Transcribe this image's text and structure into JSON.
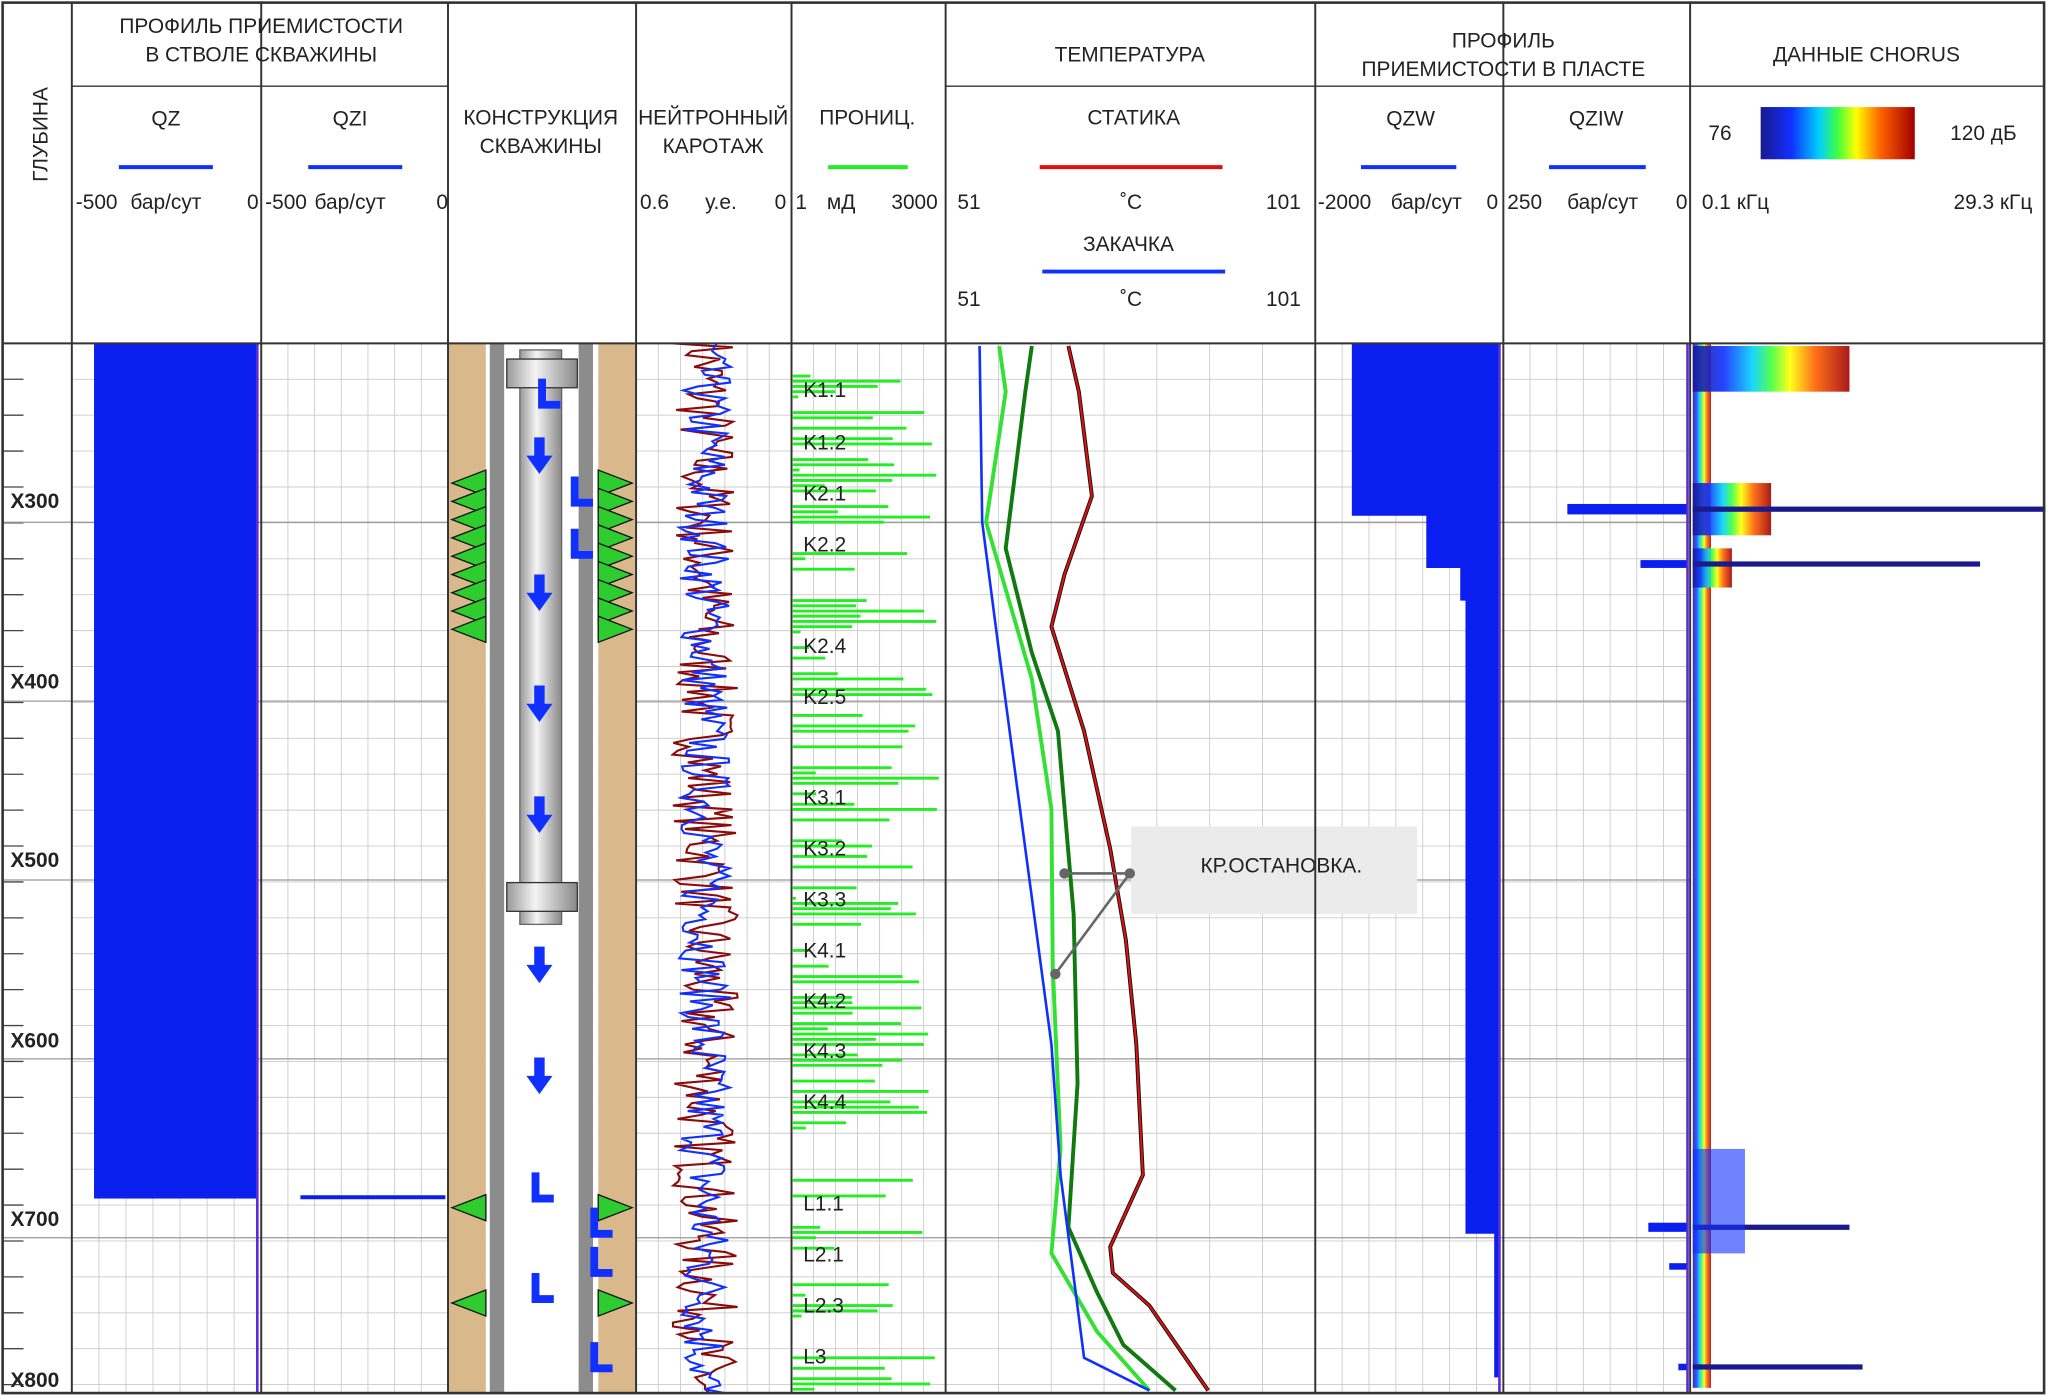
{
  "header": {
    "depth": "ГЛУБИНА",
    "wellbore_profile": [
      "ПРОФИЛЬ ПРИЕМИСТОСТИ",
      "В СТВОЛЕ СКВАЖИНЫ"
    ],
    "qz": {
      "name": "QZ",
      "min": "-500",
      "unit": "бар/сут",
      "max": "0"
    },
    "qzi": {
      "name": "QZI",
      "min": "-500",
      "unit": "бар/сут",
      "max": "0"
    },
    "construction": [
      "КОНСТРУКЦИЯ",
      "СКВАЖИНЫ"
    ],
    "neutron": {
      "name": [
        "НЕЙТРОННЫЙ",
        "КАРОТАЖ"
      ],
      "min": "0.6",
      "unit": "у.е.",
      "max": "0"
    },
    "perm": {
      "name": "ПРОНИЦ.",
      "min": "1",
      "unit": "мД",
      "max": "3000"
    },
    "temperature": {
      "title": "ТЕМПЕРАТУРА",
      "static": {
        "name": "СТАТИКА",
        "min": "51",
        "unit": "˚C",
        "max": "101"
      },
      "injection": {
        "name": "ЗАКАЧКА",
        "min": "51",
        "unit": "˚C",
        "max": "101"
      }
    },
    "reservoir_profile": [
      "ПРОФИЛЬ",
      "ПРИЕМИСТОСТИ В ПЛАСТЕ"
    ],
    "qzw": {
      "name": "QZW",
      "min": "-2000",
      "unit": "бар/сут",
      "max": "0"
    },
    "qziw": {
      "name": "QZIW",
      "min": "250",
      "unit": "бар/сут",
      "max": "0"
    },
    "chorus": {
      "title": "ДАННЫЕ CHORUS",
      "min_db": "76",
      "max_db": "120 дБ",
      "min_freq": "0.1 кГц",
      "max_freq": "29.3 кГц"
    }
  },
  "depths": [
    "X300",
    "X400",
    "X500",
    "X600",
    "X700",
    "X800"
  ],
  "zones": [
    "K1.1",
    "K1.2",
    "K2.1",
    "K2.2",
    "K2.4",
    "K2.5",
    "K3.1",
    "K3.2",
    "K3.3",
    "K4.1",
    "K4.2",
    "K4.3",
    "K4.4",
    "L1.1",
    "L2.1",
    "L2.3",
    "L3"
  ],
  "annotation": "КР.ОСТАНОВКА."
}
